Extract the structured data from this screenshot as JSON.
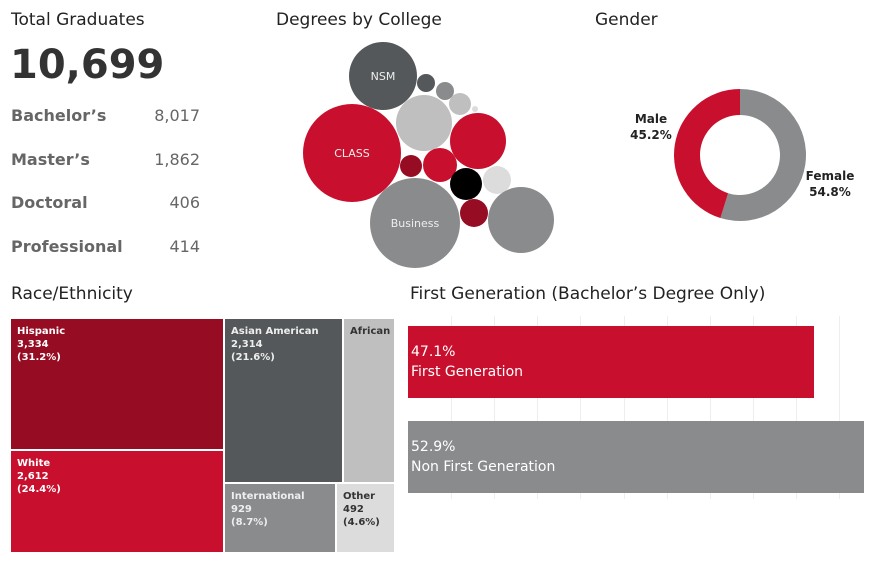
{
  "totals": {
    "title": "Total Graduates",
    "value": "10,699",
    "rows": [
      {
        "label": "Bachelor’s",
        "value": "8,017"
      },
      {
        "label": "Master’s",
        "value": "1,862"
      },
      {
        "label": "Doctoral",
        "value": "406"
      },
      {
        "label": "Professional",
        "value": "414"
      }
    ]
  },
  "colleges": {
    "title": "Degrees by College",
    "labels": {
      "nsm": "NSM",
      "class": "CLASS",
      "business": "Business"
    }
  },
  "gender": {
    "title": "Gender",
    "male_label": "Male",
    "male_pct": "45.2%",
    "female_label": "Female",
    "female_pct": "54.8%",
    "male_value": 45.2,
    "female_value": 54.8
  },
  "race": {
    "title": "Race/Ethnicity",
    "items": [
      {
        "name": "Hispanic",
        "count": "3,334",
        "pct": "(31.2%)"
      },
      {
        "name": "White",
        "count": "2,612",
        "pct": "(24.4%)"
      },
      {
        "name": "Asian American",
        "count": "2,314",
        "pct": "(21.6%)"
      },
      {
        "name": "African"
      },
      {
        "name": "International",
        "count": "929",
        "pct": "(8.7%)"
      },
      {
        "name": "Other",
        "count": "492",
        "pct": "(4.6%)"
      }
    ]
  },
  "firstgen": {
    "title": "First Generation (Bachelor’s Degree Only)",
    "bars": [
      {
        "pct": "47.1%",
        "label": "First Generation",
        "value": 47.1
      },
      {
        "pct": "52.9%",
        "label": "Non First Generation",
        "value": 52.9
      }
    ]
  },
  "colors": {
    "red": "#c8102e",
    "darkred": "#960c22",
    "darkgray": "#54585a",
    "gray": "#898b8d",
    "lightgray": "#bfbfbf",
    "lightest": "#dcdcdc"
  }
}
